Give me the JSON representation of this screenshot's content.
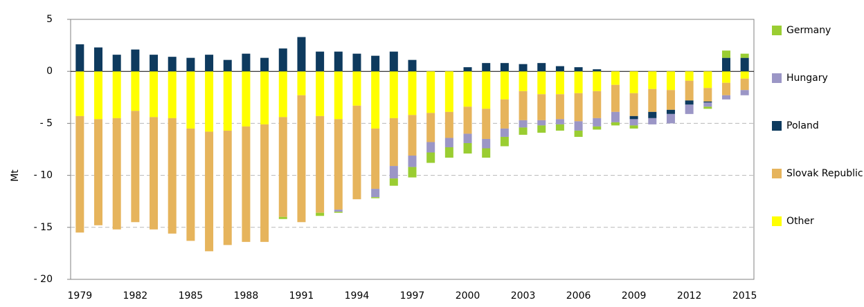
{
  "chart_data": {
    "type": "stacked_bar",
    "y_label": "Mt",
    "categories": [
      "1979",
      null,
      null,
      "1982",
      null,
      null,
      "1985",
      null,
      null,
      "1988",
      null,
      null,
      "1991",
      null,
      null,
      "1994",
      null,
      null,
      "1997",
      null,
      null,
      "2000",
      null,
      null,
      "2003",
      null,
      null,
      "2006",
      null,
      null,
      "2009",
      null,
      null,
      "2012",
      null,
      null,
      "2015"
    ],
    "series": [
      {
        "name": "Germany",
        "color": "#9acd32",
        "values": [
          0,
          0,
          0,
          0,
          0,
          0,
          0,
          0,
          0,
          0,
          0,
          -0.2,
          0,
          -0.3,
          -0.1,
          0,
          -0.1,
          -0.7,
          -1.0,
          -1.0,
          -1.0,
          -1.0,
          -0.9,
          -0.9,
          -0.7,
          -0.7,
          -0.6,
          -0.6,
          -0.3,
          -0.3,
          -0.3,
          0,
          0,
          0,
          -0.2,
          0.7,
          0.4
        ]
      },
      {
        "name": "Hungary",
        "color": "#9b96c6",
        "values": [
          0,
          0,
          0,
          0,
          0,
          0,
          0,
          0,
          0,
          0,
          0,
          0,
          0,
          0,
          -0.2,
          0,
          -0.8,
          -1.2,
          -1.1,
          -1.0,
          -0.9,
          -0.9,
          -0.9,
          -0.8,
          -0.7,
          -0.5,
          -0.5,
          -0.9,
          -0.8,
          -1.0,
          -0.6,
          -0.6,
          -0.9,
          -0.9,
          -0.4,
          -0.4,
          -0.5
        ]
      },
      {
        "name": "Poland",
        "color": "#0e3a5e",
        "values": [
          2.6,
          2.3,
          1.6,
          2.1,
          1.6,
          1.4,
          1.3,
          1.6,
          1.1,
          1.7,
          1.3,
          2.2,
          3.3,
          1.9,
          1.9,
          1.7,
          1.5,
          1.9,
          1.1,
          0,
          0,
          0.4,
          0.8,
          0.8,
          0.7,
          0.8,
          0.5,
          0.4,
          0.2,
          0,
          -0.3,
          -0.6,
          -0.4,
          -0.4,
          -0.1,
          1.3,
          1.3
        ]
      },
      {
        "name": "Slovak Republic",
        "color": "#e6b45c",
        "values": [
          -11.2,
          -10.2,
          -10.7,
          -10.7,
          -10.8,
          -11.1,
          -10.8,
          -11.5,
          -11.0,
          -11.1,
          -11.3,
          -9.6,
          -12.2,
          -9.3,
          -8.7,
          -9.0,
          -5.8,
          -4.6,
          -3.9,
          -2.8,
          -2.5,
          -2.6,
          -2.9,
          -2.8,
          -2.8,
          -2.5,
          -2.4,
          -2.7,
          -2.6,
          -2.6,
          -2.2,
          -2.2,
          -1.9,
          -1.9,
          -1.3,
          -1.2,
          -1.1
        ]
      },
      {
        "name": "Other",
        "color": "#ffff00",
        "values": [
          -4.3,
          -4.6,
          -4.5,
          -3.8,
          -4.4,
          -4.5,
          -5.5,
          -5.8,
          -5.7,
          -5.3,
          -5.1,
          -4.4,
          -2.3,
          -4.3,
          -4.6,
          -3.3,
          -5.5,
          -4.5,
          -4.2,
          -4.0,
          -3.9,
          -3.4,
          -3.6,
          -2.7,
          -1.9,
          -2.2,
          -2.2,
          -2.1,
          -1.9,
          -1.3,
          -2.1,
          -1.7,
          -1.8,
          -0.9,
          -1.6,
          -1.1,
          -0.7
        ]
      }
    ],
    "ylim": [
      -20,
      5
    ],
    "yticks": [
      5,
      0,
      {
        "value": -5,
        "label": "- 5"
      },
      {
        "value": -10,
        "label": "- 10"
      },
      {
        "value": -15,
        "label": "- 15"
      },
      {
        "value": -20,
        "label": "- 20"
      }
    ],
    "grid": true,
    "legend": "right"
  }
}
